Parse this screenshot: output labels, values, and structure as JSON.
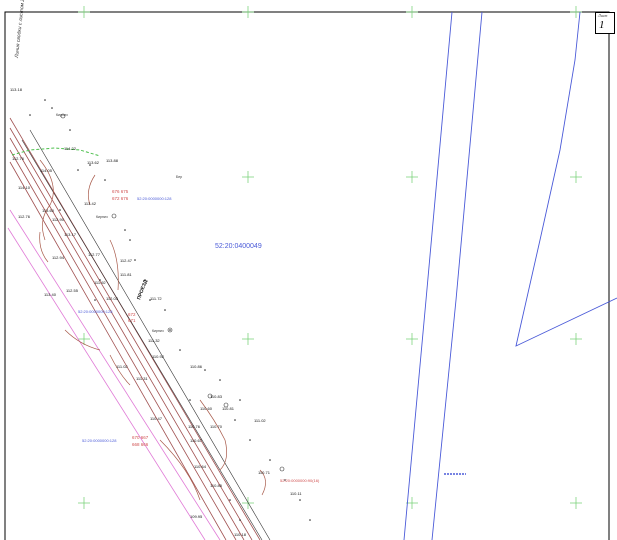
{
  "sheet": {
    "label": "Лист",
    "number": "1"
  },
  "frame_note": "Линия сводки с листом 2",
  "parcels": {
    "main": "52:20:0400049",
    "p128_top": "52:20:0000000:128",
    "p128_mid": "52:20:0000000:128",
    "p128_bottom": "52:20:0000000:128",
    "p90": "52:20:0000000:90(16)"
  },
  "road_label": "ПРОЕЗД",
  "red_coords": {
    "top": [
      "676 675",
      "672 676"
    ],
    "mid": [
      "672",
      "671"
    ],
    "bottom": [
      "670 667",
      "668 666"
    ]
  },
  "elevations": [
    "114.22",
    "113.88",
    "114.05",
    "113.62",
    "114.10",
    "113.42",
    "113.60",
    "112.76",
    "112.90",
    "113.17",
    "112.94",
    "113.40",
    "112.55",
    "111.81",
    "112.77",
    "112.47",
    "111.92",
    "112.03",
    "111.72",
    "111.32",
    "111.02",
    "111.31",
    "110.86",
    "110.92",
    "110.83",
    "110.60",
    "110.70",
    "110.47",
    "110.81",
    "110.76",
    "111.02",
    "110.67",
    "110.64",
    "110.71",
    "110.85",
    "110.11",
    "110.18",
    "109.95",
    "113.18",
    "112.76"
  ],
  "symbols": {
    "fence_note": "Кирпич",
    "tree_note": "Бер"
  }
}
